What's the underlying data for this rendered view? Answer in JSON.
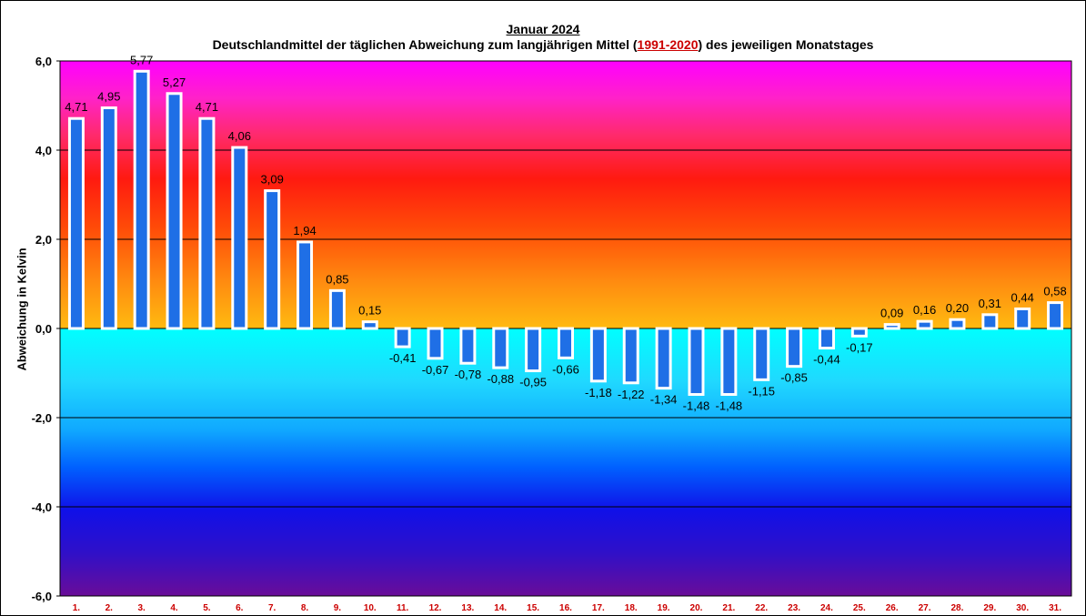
{
  "chart_data": {
    "type": "bar",
    "title": "Januar 2024",
    "subtitle_parts": [
      "Deutschlandmittel der täglichen Abweichung zum langjährigen Mittel (",
      "1991-2020",
      ") des jeweiligen Monatstages"
    ],
    "xlabel": "",
    "ylabel": "Abweichung  in Kelvin",
    "ylim": [
      -6,
      6
    ],
    "yticks": [
      "6,0",
      "4,0",
      "2,0",
      "0,0",
      "-2,0",
      "-4,0",
      "-6,0"
    ],
    "grid": true,
    "categories": [
      "1.",
      "2.",
      "3.",
      "4.",
      "5.",
      "6.",
      "7.",
      "8.",
      "9.",
      "10.",
      "11.",
      "12.",
      "13.",
      "14.",
      "15.",
      "16.",
      "17.",
      "18.",
      "19.",
      "20.",
      "21.",
      "22.",
      "23.",
      "24.",
      "25.",
      "26.",
      "27.",
      "28.",
      "29.",
      "30.",
      "31."
    ],
    "values": [
      4.71,
      4.95,
      5.77,
      5.27,
      4.71,
      4.06,
      3.09,
      1.94,
      0.85,
      0.15,
      -0.41,
      -0.67,
      -0.78,
      -0.88,
      -0.95,
      -0.66,
      -1.18,
      -1.22,
      -1.34,
      -1.48,
      -1.48,
      -1.15,
      -0.85,
      -0.44,
      -0.17,
      0.09,
      0.16,
      0.2,
      0.31,
      0.44,
      0.58
    ],
    "labels": [
      "4,71",
      "4,95",
      "5,77",
      "5,27",
      "4,71",
      "4,06",
      "3,09",
      "1,94",
      "0,85",
      "0,15",
      "-0,41",
      "-0,67",
      "-0,78",
      "-0,88",
      "-0,95",
      "-0,66",
      "-1,18",
      "-1,22",
      "-1,34",
      "-1,48",
      "-1,48",
      "-1,15",
      "-0,85",
      "-0,44",
      "-0,17",
      "0,09",
      "0,16",
      "0,20",
      "0,31",
      "0,44",
      "0,58"
    ],
    "colors": {
      "bar": "#1f6fe6",
      "bar_outline": "#ffffff",
      "category_label": "#cc0000"
    }
  }
}
